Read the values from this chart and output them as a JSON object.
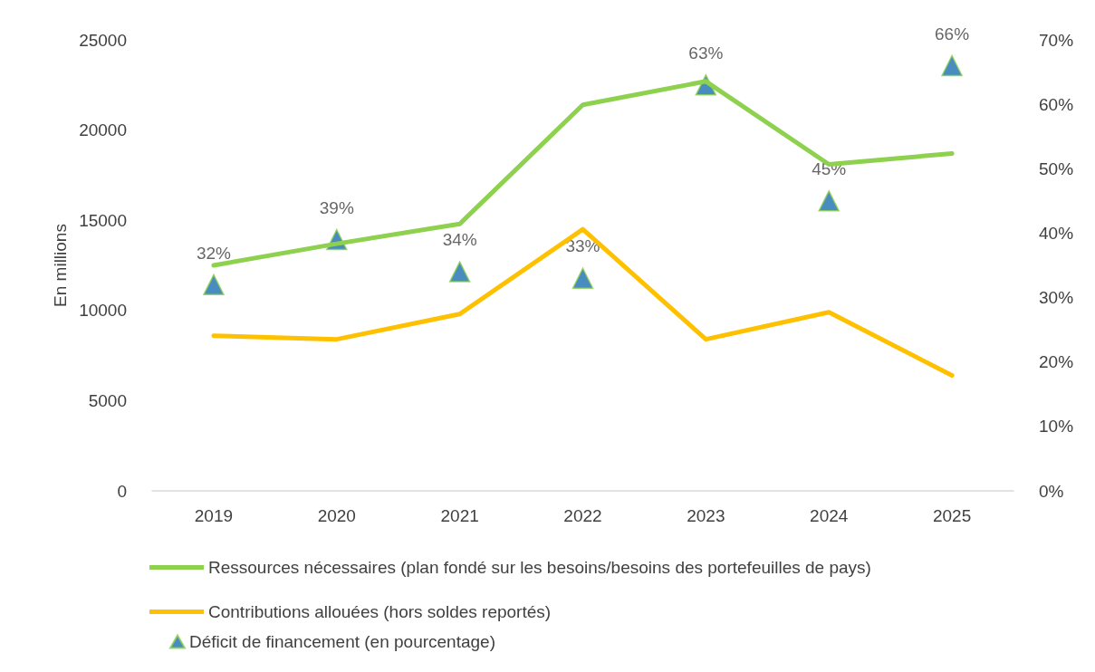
{
  "chart_data": {
    "type": "line",
    "ylabel": "En millions",
    "categories": [
      "2019",
      "2020",
      "2021",
      "2022",
      "2023",
      "2024",
      "2025"
    ],
    "series": [
      {
        "name": "Ressources nécessaires (plan fondé sur les besoins/besoins des portefeuilles de pays)",
        "color": "#8dd14e",
        "values": [
          12500,
          13700,
          14800,
          21400,
          22700,
          18100,
          18700
        ]
      },
      {
        "name": "Contributions allouées (hors soldes reportés)",
        "color": "#ffc000",
        "values": [
          8600,
          8400,
          9800,
          14500,
          8400,
          9900,
          6400
        ]
      },
      {
        "name": "Déficit de financement (en pourcentage)",
        "type": "scatter",
        "axis": "y2",
        "marker": "triangle",
        "color": "#1a6fb0",
        "values": [
          32,
          39,
          34,
          33,
          63,
          45,
          66
        ],
        "value_labels": [
          "32%",
          "39%",
          "34%",
          "33%",
          "63%",
          "45%",
          "66%"
        ]
      }
    ],
    "ylim": [
      0,
      25000
    ],
    "yticks": [
      0,
      5000,
      10000,
      15000,
      20000,
      25000
    ],
    "y2lim": [
      0,
      70
    ],
    "y2ticks": [
      {
        "value": 0,
        "label": "0%"
      },
      {
        "value": 10,
        "label": "10%"
      },
      {
        "value": 20,
        "label": "20%"
      },
      {
        "value": 30,
        "label": "30%"
      },
      {
        "value": 40,
        "label": "40%"
      },
      {
        "value": 50,
        "label": "50%"
      },
      {
        "value": 60,
        "label": "60%"
      },
      {
        "value": 70,
        "label": "70%"
      }
    ],
    "grid": false,
    "legend": "bottom",
    "line_style": "solid"
  }
}
